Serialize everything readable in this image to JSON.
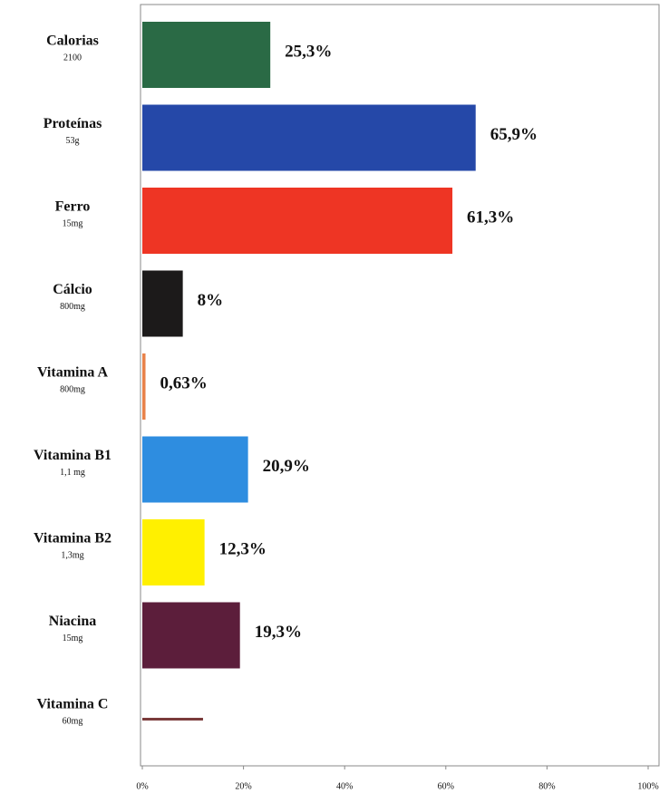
{
  "chart_data": {
    "type": "bar",
    "orientation": "horizontal",
    "categories": [
      "Calorias",
      "Proteínas",
      "Ferro",
      "Cálcio",
      "Vitamina A",
      "Vitamina B1",
      "Vitamina B2",
      "Niacina",
      "Vitamina C"
    ],
    "category_notes": [
      "2100",
      "53g",
      "15mg",
      "800mg",
      "800mg",
      "1,1 mg",
      "1,3mg",
      "15mg",
      "60mg"
    ],
    "values": [
      25.3,
      65.9,
      61.3,
      8,
      0.63,
      20.9,
      12.3,
      19.3,
      12
    ],
    "value_labels": [
      "25,3%",
      "65,9%",
      "61,3%",
      "8%",
      "0,63%",
      "20,9%",
      "12,3%",
      "19,3%",
      null
    ],
    "colors": [
      "#2a6a45",
      "#2548a8",
      "#ee3524",
      "#1c1a1a",
      "#e8824a",
      "#2e8de0",
      "#fff000",
      "#5c1e3b",
      "#7a3b3b"
    ],
    "xlim": [
      0,
      100
    ],
    "xticks": [
      {
        "value": 0,
        "label": "0%"
      },
      {
        "value": 20,
        "label": "20%"
      },
      {
        "value": 40,
        "label": "40%"
      },
      {
        "value": 60,
        "label": "60%"
      },
      {
        "value": 80,
        "label": "80%"
      },
      {
        "value": 100,
        "label": "100%"
      }
    ]
  }
}
